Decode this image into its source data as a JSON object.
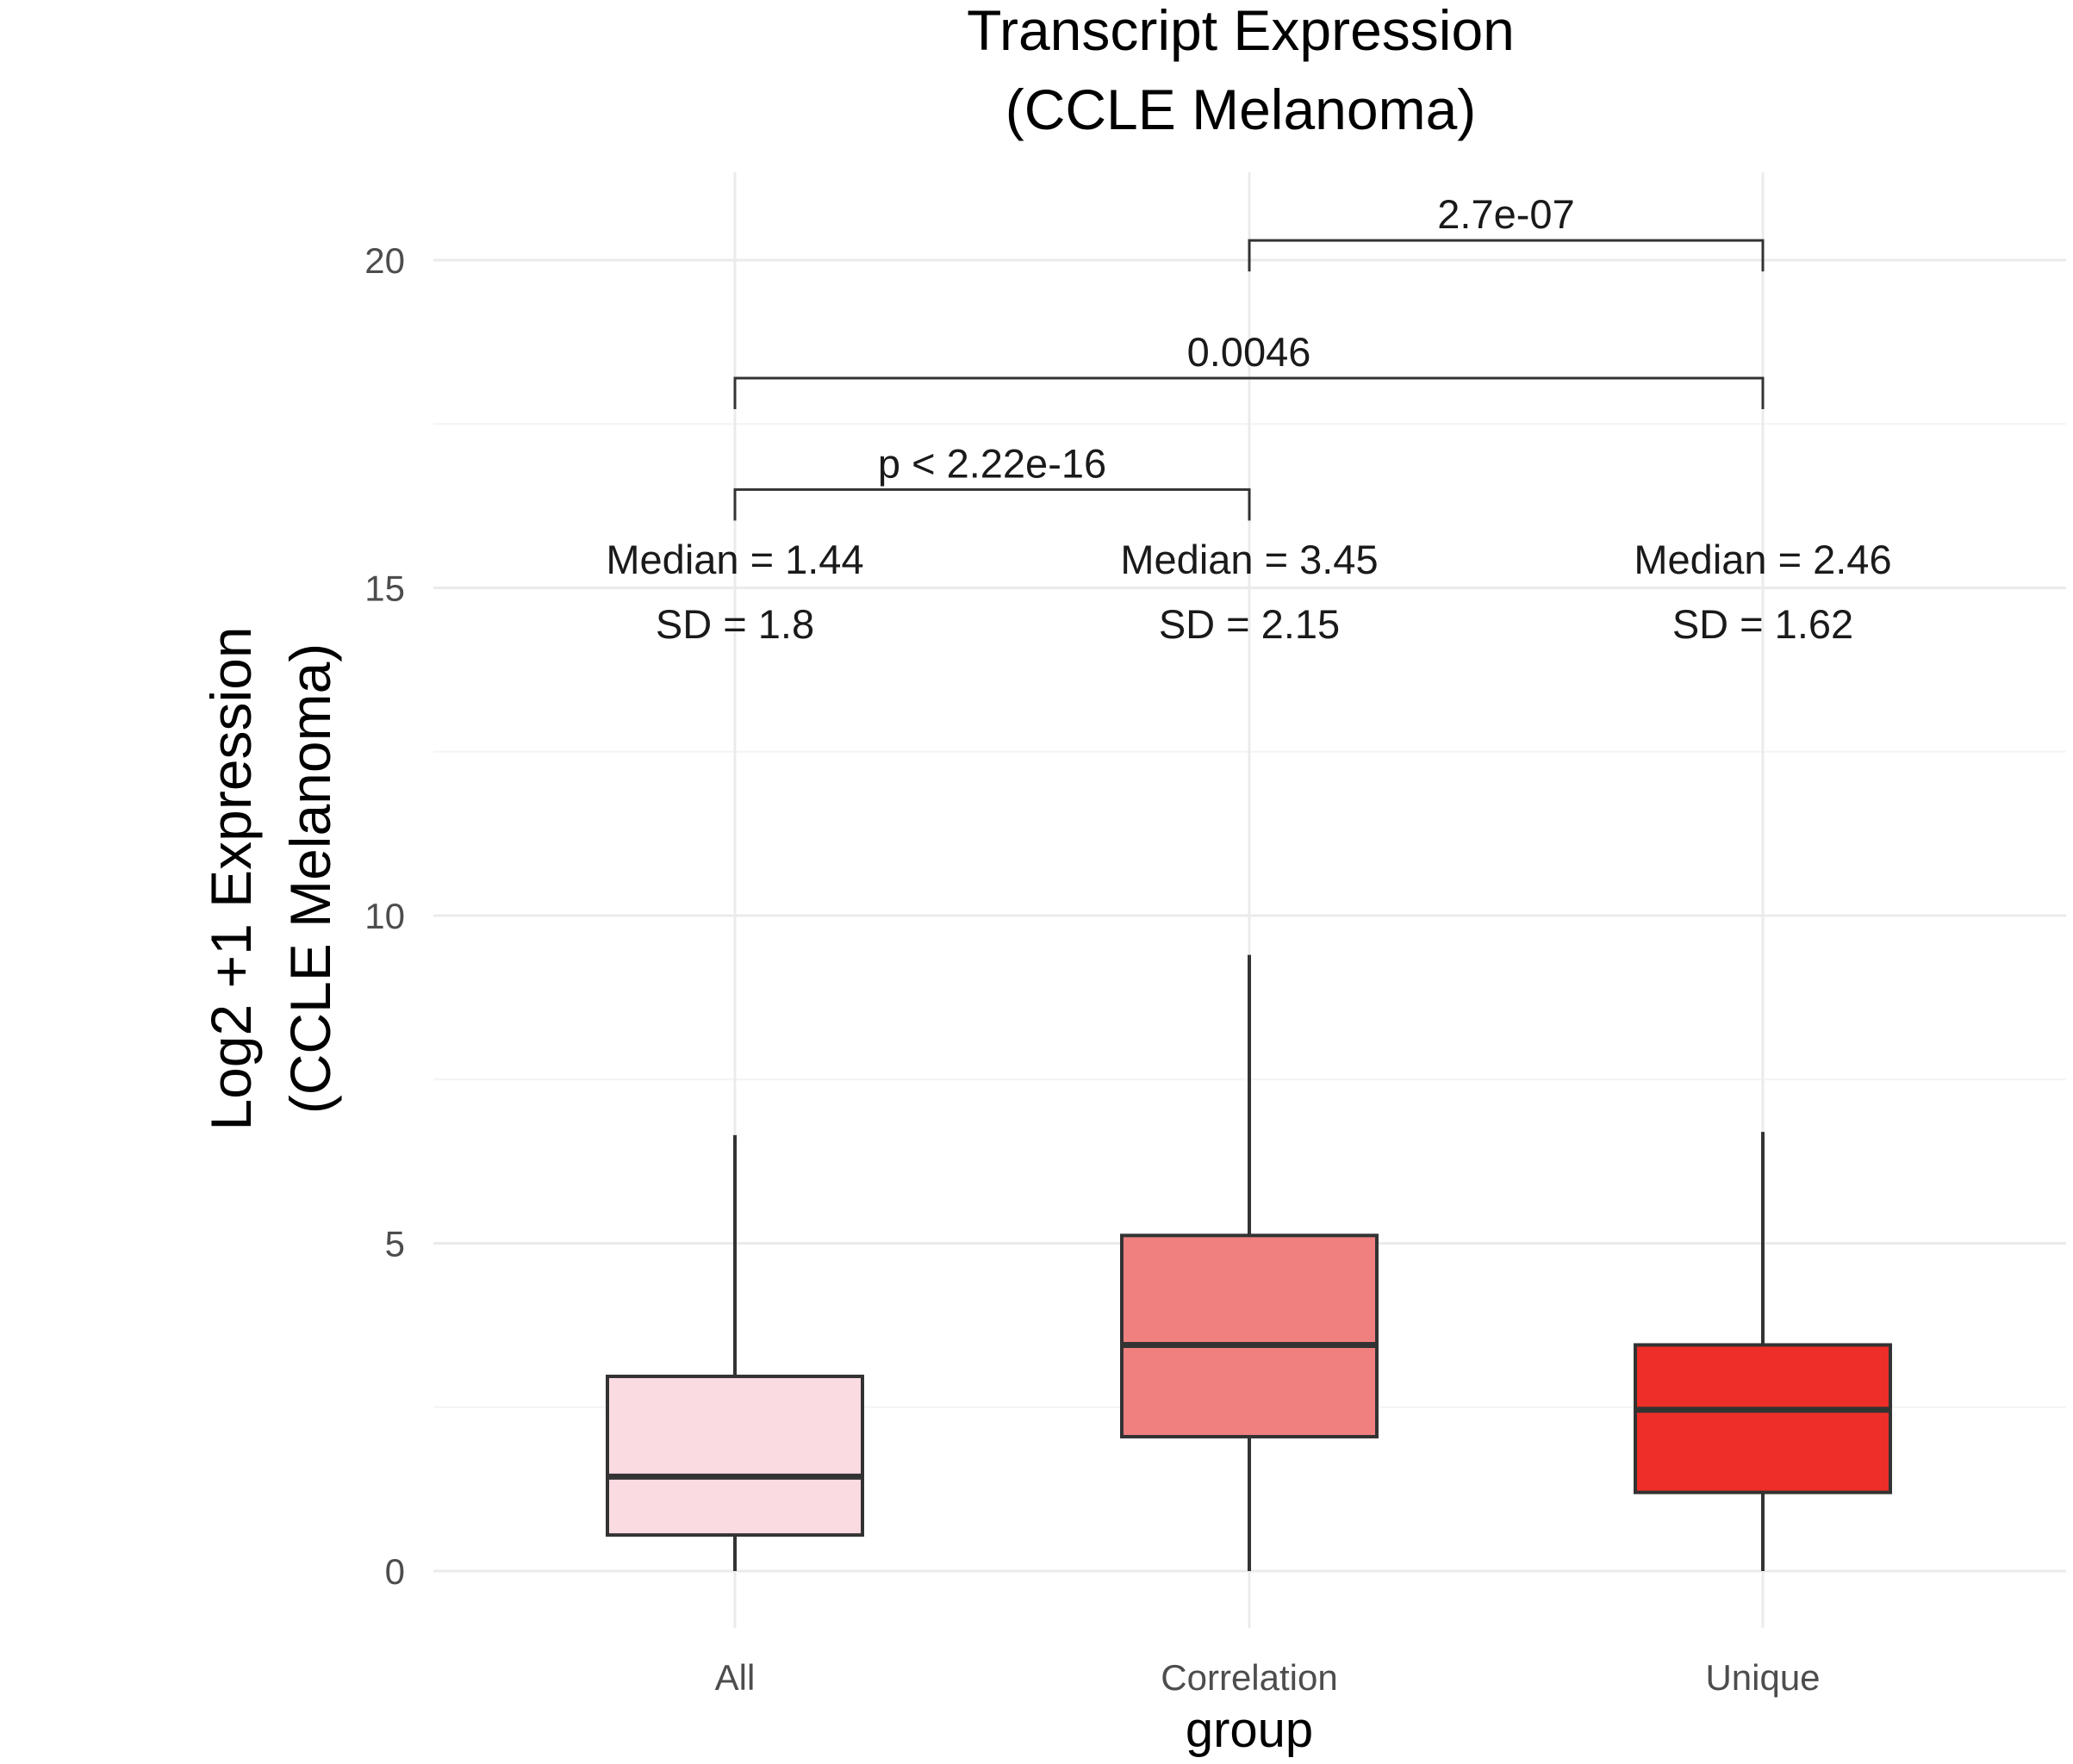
{
  "chart_data": {
    "type": "box",
    "title": [
      "Transcript Expression",
      "(CCLE Melanoma)"
    ],
    "xlabel": "group",
    "ylabel": [
      "Log2 +1 Expression",
      "(CCLE Melanoma)"
    ],
    "ylim": [
      -1.3,
      21.3
    ],
    "yticks": [
      "0",
      "5",
      "10",
      "15",
      "20"
    ],
    "grid": true,
    "categories": [
      "All",
      "Correlation",
      "Unique"
    ],
    "boxes": [
      {
        "category": "All",
        "whisker_low": 0.0,
        "q1": 0.55,
        "median": 1.44,
        "q3": 2.97,
        "whisker_high": 6.65,
        "fill": "#fbdbe2",
        "annotation": [
          "Median = 1.44",
          "SD = 1.8"
        ]
      },
      {
        "category": "Correlation",
        "whisker_low": 0.0,
        "q1": 2.05,
        "median": 3.45,
        "q3": 5.12,
        "whisker_high": 9.4,
        "fill": "#f08080",
        "annotation": [
          "Median = 3.45",
          "SD = 2.15"
        ]
      },
      {
        "category": "Unique",
        "whisker_low": 0.0,
        "q1": 1.2,
        "median": 2.46,
        "q3": 3.45,
        "whisker_high": 6.7,
        "fill": "#ee2e28",
        "annotation": [
          "Median = 2.46",
          "SD = 1.62"
        ]
      }
    ],
    "comparisons": [
      {
        "from": "All",
        "to": "Correlation",
        "y": 16.5,
        "label": "p < 2.22e-16"
      },
      {
        "from": "All",
        "to": "Unique",
        "y": 18.2,
        "label": "0.0046"
      },
      {
        "from": "Correlation",
        "to": "Unique",
        "y": 20.3,
        "label": "2.7e-07"
      }
    ]
  }
}
